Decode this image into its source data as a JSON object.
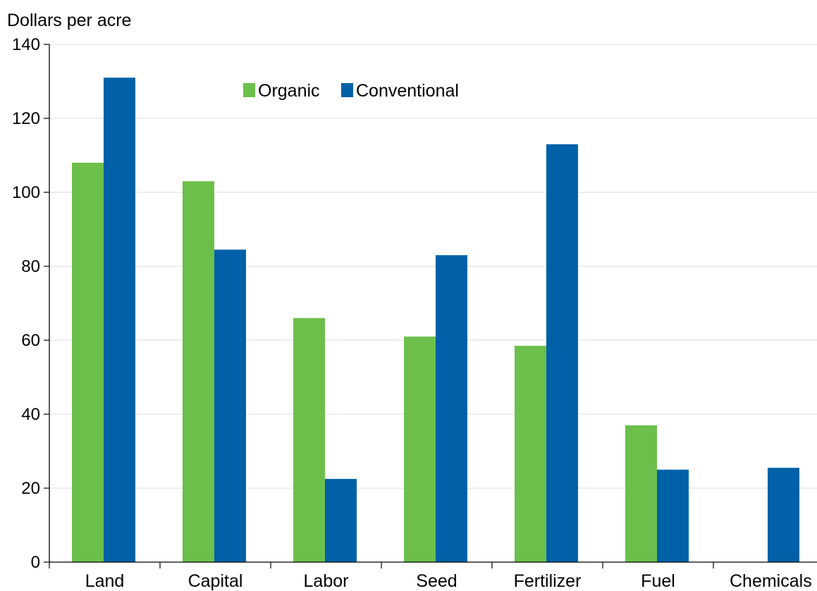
{
  "chart_data": {
    "type": "bar",
    "title": "",
    "xlabel": "",
    "ylabel": "Dollars per acre",
    "ylim": [
      0,
      140
    ],
    "yticks": [
      0,
      20,
      40,
      60,
      80,
      100,
      120,
      140
    ],
    "grid": true,
    "legend_placement": "top-center",
    "categories": [
      "Land",
      "Capital",
      "Labor",
      "Seed",
      "Fertilizer",
      "Fuel",
      "Chemicals"
    ],
    "series": [
      {
        "name": "Organic",
        "color": "#6cbf4b",
        "values": [
          108,
          103,
          66,
          61,
          58.5,
          37,
          0
        ]
      },
      {
        "name": "Conventional",
        "color": "#0061a8",
        "values": [
          131,
          84.5,
          22.5,
          83,
          113,
          25,
          25.5
        ]
      }
    ]
  }
}
